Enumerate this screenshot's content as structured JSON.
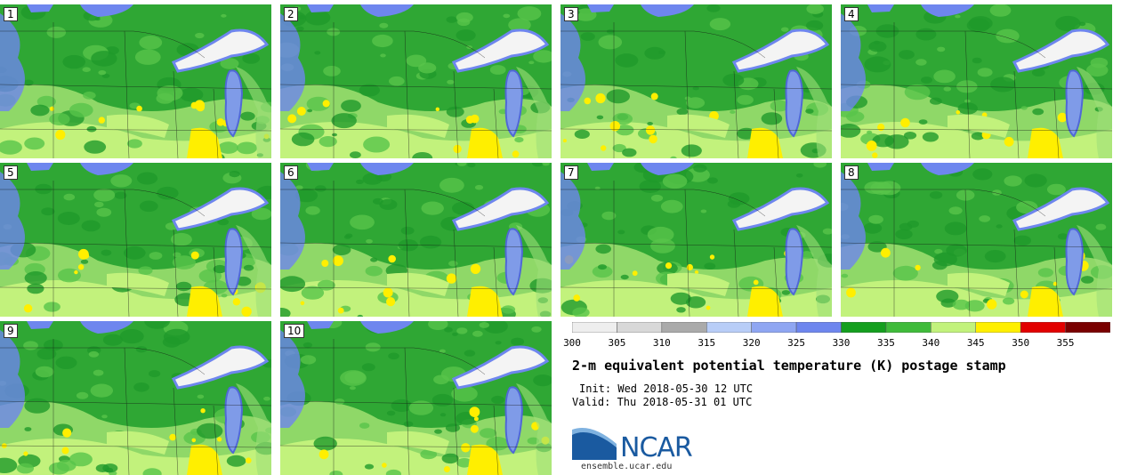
{
  "panels": [
    "1",
    "2",
    "3",
    "4",
    "5",
    "6",
    "7",
    "8",
    "9",
    "10"
  ],
  "colorbar": {
    "ticks": [
      "300",
      "305",
      "310",
      "315",
      "320",
      "325",
      "330",
      "335",
      "340",
      "345",
      "350",
      "355"
    ],
    "colors": [
      "#eeeeee",
      "#d8d8d8",
      "#aaaaaa",
      "#b8cdf7",
      "#8fa6f2",
      "#6e86ee",
      "#149f1e",
      "#3fbb3a",
      "#c2f27c",
      "#ffef00",
      "#e20000",
      "#7a0000"
    ]
  },
  "title": "2-m equivalent potential temperature (K) postage stamp",
  "init": "Init: Wed 2018-05-30 12 UTC",
  "valid": "Valid: Thu 2018-05-31 01 UTC",
  "logo": {
    "text": "NCAR",
    "url_text": "ensemble.ucar.edu"
  }
}
